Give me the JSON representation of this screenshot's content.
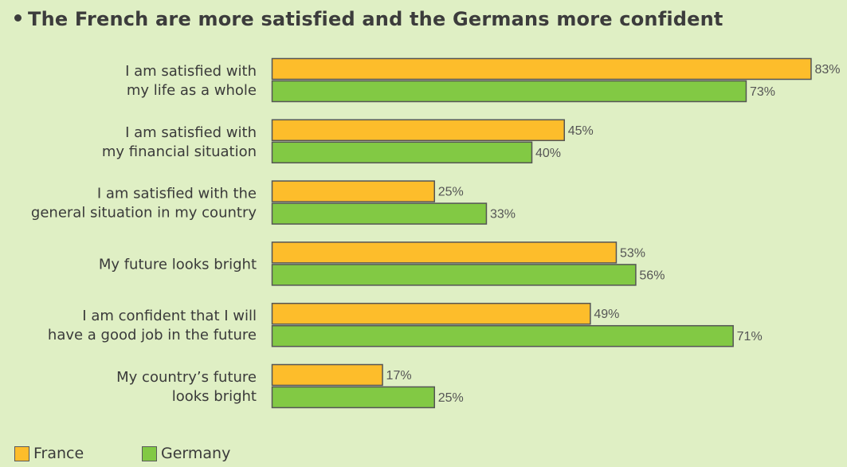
{
  "chart_data": {
    "type": "bar",
    "orientation": "horizontal",
    "title": "The French are more satisfied and the Germans more confident",
    "categories": [
      [
        "I am satisfied with",
        "my life as a whole"
      ],
      [
        "I am satisfied with",
        "my  financial situation"
      ],
      [
        "I am satisfied with the",
        "general  situation  in  my country"
      ],
      [
        "My future looks bright"
      ],
      [
        "I am confident that  I will",
        "have  a good job  in the future"
      ],
      [
        "My country’s future",
        "looks bright"
      ]
    ],
    "series": [
      {
        "name": "France",
        "color": "#fdbd2b",
        "values": [
          83,
          45,
          25,
          53,
          49,
          17
        ]
      },
      {
        "name": "Germany",
        "color": "#82c944",
        "values": [
          73,
          40,
          33,
          56,
          71,
          25
        ]
      }
    ],
    "value_suffix": "%",
    "xlim": [
      0,
      100
    ],
    "grid": false,
    "legend": "bottom-left"
  },
  "legend": [
    {
      "label": "France",
      "color": "#fdbd2b"
    },
    {
      "label": "Germany",
      "color": "#82c944"
    }
  ]
}
